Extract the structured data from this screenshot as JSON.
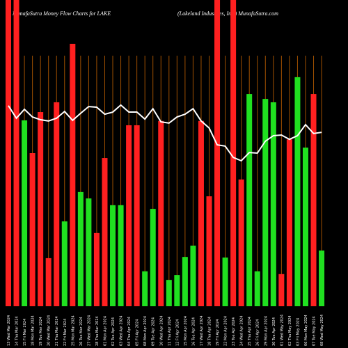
{
  "chart_data": {
    "type": "bar",
    "title": "MunafaSutra  Money Flow  Charts for LAKE",
    "subtitle": "(Lakeland Industries, Inc.) MunafaSutra.com",
    "categories": [
      "13 Wed Mar 2024",
      "14 Thu Mar 2024",
      "15 Fri Mar 2024",
      "18 Mon Mar 2024",
      "19 Tue Mar 2024",
      "20 Wed Mar 2024",
      "21 Thu Mar 2024",
      "22 Fri Mar 2024",
      "25 Mon Mar 2024",
      "26 Tue Mar 2024",
      "27 Wed Mar 2024",
      "28 Thu Mar 2024",
      "01 Mon Apr 2024",
      "02 Tue Apr 2024",
      "03 Wed Apr 2024",
      "04 Thu Apr 2024",
      "05 Fri Apr 2024",
      "08 Mon Apr 2024",
      "09 Tue Apr 2024",
      "10 Wed Apr 2024",
      "11 Thu Apr 2024",
      "12 Fri Apr 2024",
      "15 Mon Apr 2024",
      "16 Tue Apr 2024",
      "17 Wed Apr 2024",
      "18 Thu Apr 2024",
      "19 Fri Apr 2024",
      "22 Mon Apr 2024",
      "23 Tue Apr 2024",
      "24 Wed Apr 2024",
      "25 Thu Apr 2024",
      "26 Fri Apr 2024",
      "29 Mon Apr 2024",
      "30 Tue Apr 2024",
      "01 Wed May 2024",
      "02 Thu May 2024",
      "03 Fri May 2024",
      "06 Mon May 2024",
      "07 Tue May 2024",
      "08 Wed May 2024"
    ],
    "values": [
      100,
      100,
      60.7,
      50,
      63.4,
      15.7,
      66.6,
      27.7,
      85.7,
      37.3,
      35.2,
      23.9,
      48.4,
      33,
      33,
      59.1,
      59.1,
      11.4,
      31.8,
      60.5,
      8.6,
      10.2,
      16.1,
      19.8,
      60.5,
      35.9,
      100,
      15.9,
      100,
      41.4,
      69.3,
      11.4,
      67.7,
      66.6,
      10.5,
      54.5,
      74.8,
      51.8,
      69.3,
      18.2
    ],
    "bar_colors": [
      "#ff2020",
      "#ff2020",
      "#20e020",
      "#ff2020",
      "#ff2020",
      "#ff2020",
      "#ff2020",
      "#20e020",
      "#ff2020",
      "#20e020",
      "#20e020",
      "#ff2020",
      "#ff2020",
      "#20e020",
      "#20e020",
      "#ff2020",
      "#ff2020",
      "#20e020",
      "#20e020",
      "#ff2020",
      "#20e020",
      "#20e020",
      "#20e020",
      "#20e020",
      "#ff2020",
      "#ff2020",
      "#ff2020",
      "#20e020",
      "#ff2020",
      "#ff2020",
      "#20e020",
      "#20e020",
      "#20e020",
      "#20e020",
      "#ff2020",
      "#ff2020",
      "#20e020",
      "#20e020",
      "#ff2020",
      "#20e020"
    ],
    "line_values": [
      65.5,
      61.4,
      64.3,
      61.8,
      60.9,
      60.5,
      61.4,
      63.6,
      60.7,
      63,
      65.2,
      65,
      62.7,
      63.4,
      65.7,
      63.4,
      63.4,
      61.1,
      64.5,
      60.2,
      59.8,
      61.8,
      62.7,
      64.5,
      60.5,
      58.2,
      52.7,
      52.3,
      48.6,
      47.5,
      50.2,
      50,
      53.9,
      55.7,
      55.9,
      54.5,
      55.7,
      59.3,
      56.4,
      56.8
    ],
    "line_color": "#ffffff",
    "grid_color": "#a05000",
    "ylim": [
      0,
      100
    ]
  }
}
